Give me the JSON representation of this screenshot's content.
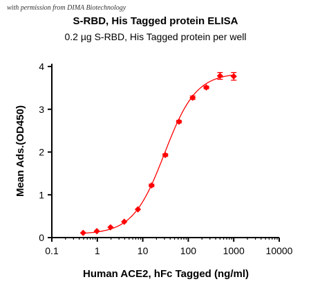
{
  "watermark": "with permission from DIMA Biotechnology",
  "chart_data": {
    "type": "scatter",
    "title": "S-RBD, His Tagged protein ELISA",
    "subtitle": "0.2 µg S-RBD, His Tagged protein per well",
    "xlabel": "Human ACE2, hFc Tagged (ng/ml)",
    "ylabel": "Mean Ads.(OD450)",
    "xscale": "log",
    "xlim": [
      0.1,
      10000
    ],
    "ylim": [
      0,
      4
    ],
    "x_tick_labels": [
      "0.1",
      "1",
      "10",
      "100",
      "1000",
      "10000"
    ],
    "x_ticks": [
      0.1,
      1,
      10,
      100,
      1000,
      10000
    ],
    "y_tick_labels": [
      "0",
      "1",
      "2",
      "3",
      "4"
    ],
    "y_ticks": [
      0,
      1,
      2,
      3,
      4
    ],
    "grid": false,
    "color": "#ff0000",
    "series": [
      {
        "x": [
          0.488,
          0.977,
          1.95,
          3.91,
          7.81,
          15.6,
          31.3,
          62.5,
          125,
          250,
          500,
          1000
        ],
        "y": [
          0.11,
          0.15,
          0.24,
          0.37,
          0.66,
          1.22,
          1.93,
          2.71,
          3.27,
          3.51,
          3.78,
          3.77
        ],
        "error": [
          0.01,
          0.01,
          0.01,
          0.01,
          0.02,
          0.03,
          0.03,
          0.03,
          0.04,
          0.03,
          0.08,
          0.09
        ]
      }
    ],
    "fit": {
      "bottom": 0.08,
      "top": 3.85,
      "ec50": 30,
      "hill": 1.25
    }
  }
}
